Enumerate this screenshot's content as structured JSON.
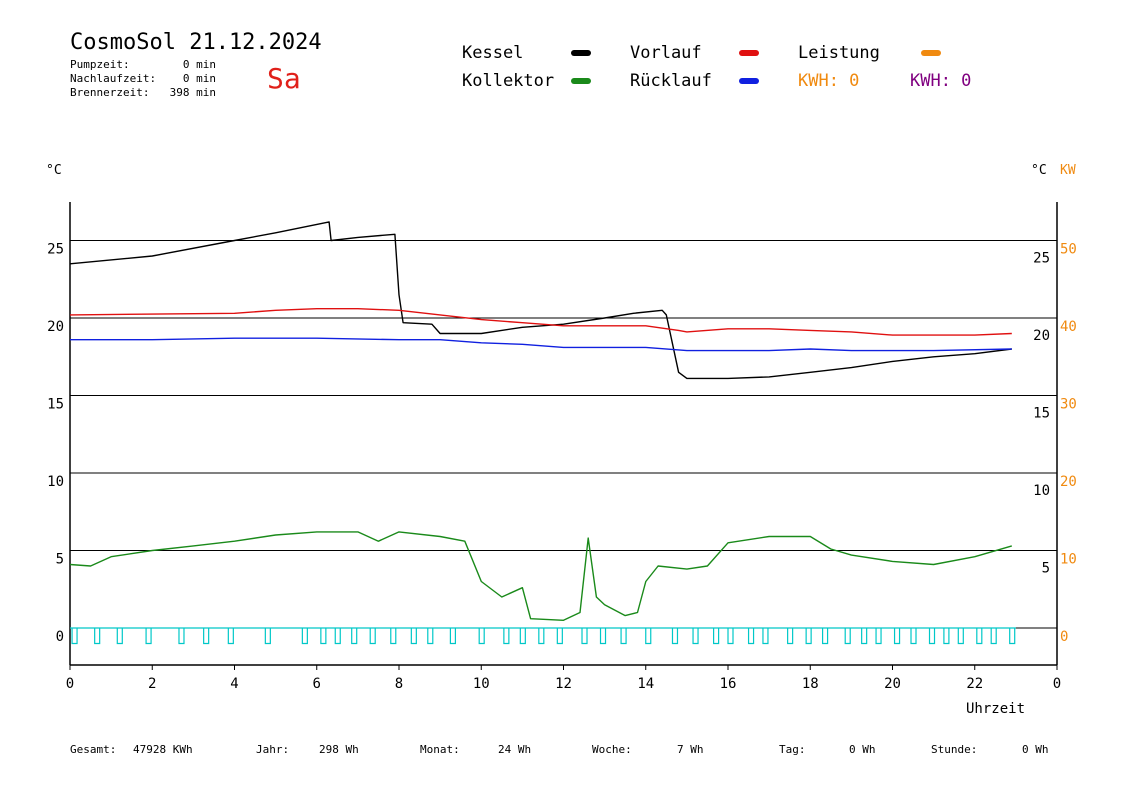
{
  "header": {
    "title": "CosmoSol 21.12.2024",
    "weekday": "Sa",
    "stats": [
      {
        "label": "Pumpzeit:",
        "value": "0 min"
      },
      {
        "label": "Nachlaufzeit:",
        "value": "0 min"
      },
      {
        "label": "Brennerzeit:",
        "value": "398 min"
      }
    ]
  },
  "legend": {
    "kessel": {
      "label": "Kessel",
      "color": "#000000"
    },
    "kollektor": {
      "label": "Kollektor",
      "color": "#1a8a1a"
    },
    "vorlauf": {
      "label": "Vorlauf",
      "color": "#e01010"
    },
    "ruecklauf": {
      "label": "Rücklauf",
      "color": "#1020e0"
    },
    "leistung": {
      "label": "Leistung",
      "color": "#f08a10"
    },
    "kwh1": {
      "text": "KWH: 0",
      "color": "#f08a10"
    },
    "kwh2": {
      "text": "KWH: 0",
      "color": "#800080"
    }
  },
  "axes": {
    "left_unit": "°C",
    "right_unit": "°C",
    "right_kw_unit": "KW",
    "xlabel": "Uhrzeit"
  },
  "footer": [
    {
      "label": "Gesamt:",
      "value": "47928 KWh"
    },
    {
      "label": "Jahr:",
      "value": "298 Wh"
    },
    {
      "label": "Monat:",
      "value": "24 Wh"
    },
    {
      "label": "Woche:",
      "value": "7 Wh"
    },
    {
      "label": "Tag:",
      "value": "0 Wh"
    },
    {
      "label": "Stunde:",
      "value": "0 Wh"
    }
  ],
  "chart_data": {
    "type": "line",
    "xlabel": "Uhrzeit",
    "xlim": [
      0,
      24
    ],
    "x_ticks": [
      "0",
      "2",
      "4",
      "6",
      "8",
      "10",
      "12",
      "14",
      "16",
      "18",
      "20",
      "22",
      "0"
    ],
    "y_left": {
      "unit": "°C",
      "ylim": [
        -2,
        27.5
      ],
      "ticks": [
        "0",
        "5",
        "10",
        "15",
        "20",
        "25"
      ]
    },
    "y_right_temp": {
      "unit": "°C",
      "ticks": [
        "5",
        "10",
        "15",
        "20",
        "25"
      ]
    },
    "y_right_kw": {
      "unit": "KW",
      "ticks": [
        "0",
        "10",
        "20",
        "30",
        "40",
        "50"
      ],
      "color": "#f08a10"
    },
    "grid_lines_y": [
      0,
      5,
      10,
      15,
      20,
      25
    ],
    "series": [
      {
        "name": "Kessel",
        "color": "#000000",
        "points": [
          [
            0,
            23.5
          ],
          [
            2,
            24.0
          ],
          [
            4,
            25.0
          ],
          [
            5,
            25.5
          ],
          [
            6.3,
            26.2
          ],
          [
            6.35,
            25.0
          ],
          [
            7,
            25.2
          ],
          [
            7.9,
            25.4
          ],
          [
            8,
            21.5
          ],
          [
            8.1,
            19.7
          ],
          [
            8.8,
            19.6
          ],
          [
            9,
            19.0
          ],
          [
            10,
            19.0
          ],
          [
            11,
            19.4
          ],
          [
            12,
            19.6
          ],
          [
            13,
            20.0
          ],
          [
            13.7,
            20.3
          ],
          [
            14.4,
            20.5
          ],
          [
            14.5,
            20.2
          ],
          [
            14.8,
            16.5
          ],
          [
            15,
            16.1
          ],
          [
            16,
            16.1
          ],
          [
            17,
            16.2
          ],
          [
            18,
            16.5
          ],
          [
            19,
            16.8
          ],
          [
            20,
            17.2
          ],
          [
            21,
            17.5
          ],
          [
            22,
            17.7
          ],
          [
            22.9,
            18.0
          ]
        ]
      },
      {
        "name": "Vorlauf",
        "color": "#e01010",
        "points": [
          [
            0,
            20.2
          ],
          [
            4,
            20.3
          ],
          [
            5,
            20.5
          ],
          [
            6,
            20.6
          ],
          [
            7,
            20.6
          ],
          [
            8,
            20.5
          ],
          [
            9,
            20.2
          ],
          [
            10,
            19.9
          ],
          [
            11,
            19.7
          ],
          [
            12,
            19.5
          ],
          [
            13,
            19.5
          ],
          [
            14,
            19.5
          ],
          [
            14.8,
            19.2
          ],
          [
            15,
            19.1
          ],
          [
            16,
            19.3
          ],
          [
            17,
            19.3
          ],
          [
            18,
            19.2
          ],
          [
            19,
            19.1
          ],
          [
            20,
            18.9
          ],
          [
            21,
            18.9
          ],
          [
            22,
            18.9
          ],
          [
            22.9,
            19.0
          ]
        ]
      },
      {
        "name": "Rücklauf",
        "color": "#1020e0",
        "points": [
          [
            0,
            18.6
          ],
          [
            2,
            18.6
          ],
          [
            4,
            18.7
          ],
          [
            6,
            18.7
          ],
          [
            8,
            18.6
          ],
          [
            9,
            18.6
          ],
          [
            10,
            18.4
          ],
          [
            11,
            18.3
          ],
          [
            12,
            18.1
          ],
          [
            14,
            18.1
          ],
          [
            15,
            17.9
          ],
          [
            16,
            17.9
          ],
          [
            17,
            17.9
          ],
          [
            18,
            18.0
          ],
          [
            19,
            17.9
          ],
          [
            20,
            17.9
          ],
          [
            21,
            17.9
          ],
          [
            22.9,
            18.0
          ]
        ]
      },
      {
        "name": "Kollektor",
        "color": "#1a8a1a",
        "points": [
          [
            0,
            4.1
          ],
          [
            0.5,
            4.0
          ],
          [
            1,
            4.6
          ],
          [
            2,
            5.0
          ],
          [
            3,
            5.3
          ],
          [
            4,
            5.6
          ],
          [
            5,
            6.0
          ],
          [
            6,
            6.2
          ],
          [
            7,
            6.2
          ],
          [
            7.5,
            5.6
          ],
          [
            8,
            6.2
          ],
          [
            9,
            5.9
          ],
          [
            9.6,
            5.6
          ],
          [
            10,
            3.0
          ],
          [
            10.5,
            2.0
          ],
          [
            11,
            2.6
          ],
          [
            11.2,
            0.6
          ],
          [
            12,
            0.5
          ],
          [
            12.4,
            1.0
          ],
          [
            12.6,
            5.8
          ],
          [
            12.8,
            2.0
          ],
          [
            13,
            1.5
          ],
          [
            13.5,
            0.8
          ],
          [
            13.8,
            1.0
          ],
          [
            14,
            3.0
          ],
          [
            14.3,
            4.0
          ],
          [
            15,
            3.8
          ],
          [
            15.5,
            4.0
          ],
          [
            16,
            5.5
          ],
          [
            17,
            5.9
          ],
          [
            18,
            5.9
          ],
          [
            18.5,
            5.1
          ],
          [
            19,
            4.7
          ],
          [
            20,
            4.3
          ],
          [
            21,
            4.1
          ],
          [
            22,
            4.6
          ],
          [
            22.9,
            5.3
          ]
        ]
      },
      {
        "name": "Pumpe",
        "color": "#00c8c8",
        "pulses": [
          0.05,
          0.6,
          1.15,
          1.85,
          2.65,
          3.25,
          3.85,
          4.75,
          5.65,
          6.1,
          6.45,
          6.85,
          7.3,
          7.8,
          8.3,
          8.7,
          9.25,
          9.95,
          10.55,
          10.95,
          11.4,
          11.85,
          12.45,
          12.9,
          13.4,
          14.0,
          14.65,
          15.15,
          15.65,
          16.0,
          16.5,
          16.85,
          17.45,
          17.9,
          18.3,
          18.85,
          19.25,
          19.6,
          20.05,
          20.45,
          20.9,
          21.25,
          21.6,
          22.05,
          22.4,
          22.85
        ]
      }
    ]
  }
}
